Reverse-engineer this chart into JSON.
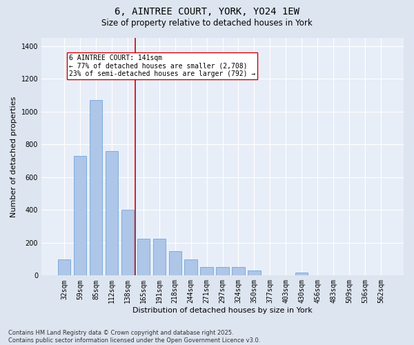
{
  "title1": "6, AINTREE COURT, YORK, YO24 1EW",
  "title2": "Size of property relative to detached houses in York",
  "xlabel": "Distribution of detached houses by size in York",
  "ylabel": "Number of detached properties",
  "categories": [
    "32sqm",
    "59sqm",
    "85sqm",
    "112sqm",
    "138sqm",
    "165sqm",
    "191sqm",
    "218sqm",
    "244sqm",
    "271sqm",
    "297sqm",
    "324sqm",
    "350sqm",
    "377sqm",
    "403sqm",
    "430sqm",
    "456sqm",
    "483sqm",
    "509sqm",
    "536sqm",
    "562sqm"
  ],
  "values": [
    100,
    730,
    1070,
    760,
    400,
    225,
    225,
    150,
    100,
    50,
    50,
    50,
    30,
    0,
    0,
    20,
    0,
    0,
    0,
    0,
    0
  ],
  "bar_color": "#aec6e8",
  "bar_edge_color": "#5b9bd5",
  "bar_width": 0.8,
  "vline_x": 4.5,
  "vline_color": "#cc0000",
  "annotation_text": "6 AINTREE COURT: 141sqm\n← 77% of detached houses are smaller (2,708)\n23% of semi-detached houses are larger (792) →",
  "ylim": [
    0,
    1450
  ],
  "yticks": [
    0,
    200,
    400,
    600,
    800,
    1000,
    1200,
    1400
  ],
  "bg_color": "#dde5f0",
  "plot_bg_color": "#e8eef8",
  "grid_color": "#ffffff",
  "footnote": "Contains HM Land Registry data © Crown copyright and database right 2025.\nContains public sector information licensed under the Open Government Licence v3.0.",
  "title_fontsize": 10,
  "subtitle_fontsize": 8.5,
  "tick_fontsize": 7,
  "label_fontsize": 8,
  "annotation_fontsize": 7,
  "footnote_fontsize": 6
}
